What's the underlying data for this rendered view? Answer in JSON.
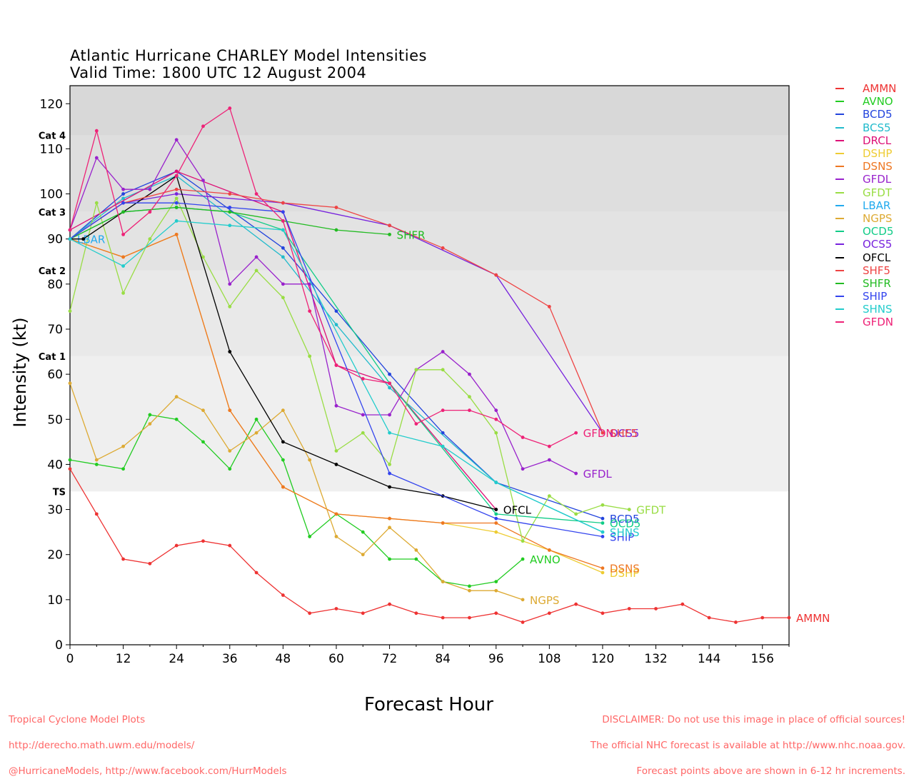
{
  "title": "Atlantic Hurricane CHARLEY Model Intensities",
  "subtitle": "Valid Time: 1800 UTC 12 August 2004",
  "footer_left": [
    "Tropical Cyclone Model Plots",
    "http://derecho.math.uwm.edu/models/",
    "@HurricaneModels, http://www.facebook.com/HurrModels"
  ],
  "footer_right": [
    "DISCLAIMER: Do not use this image in place of official sources!",
    "The official NHC forecast is available at http://www.nhc.noaa.gov.",
    "Forecast points above are shown in 6-12 hr increments."
  ],
  "chart_data": {
    "type": "line",
    "xlabel": "Forecast Hour",
    "ylabel": "Intensity (kt)",
    "xlim": [
      0,
      162
    ],
    "ylim": [
      0,
      124
    ],
    "xticks": [
      0,
      12,
      24,
      36,
      48,
      60,
      72,
      84,
      96,
      108,
      120,
      132,
      144,
      156
    ],
    "yticks": [
      0,
      10,
      20,
      30,
      40,
      50,
      60,
      70,
      80,
      90,
      100,
      110,
      120
    ],
    "grid": false,
    "legend_position": "right",
    "category_bands": [
      {
        "label": "TS",
        "from": 34,
        "to": 64,
        "color": "#efefef"
      },
      {
        "label": "Cat 1",
        "from": 64,
        "to": 83,
        "color": "#e9e9e9"
      },
      {
        "label": "Cat 2",
        "from": 83,
        "to": 96,
        "color": "#e3e3e3"
      },
      {
        "label": "Cat 3",
        "from": 96,
        "to": 113,
        "color": "#dedede"
      },
      {
        "label": "Cat 4",
        "from": 113,
        "to": 124,
        "color": "#d8d8d8"
      }
    ],
    "series": [
      {
        "name": "AMMN",
        "color": "#ee3333",
        "label": "AMMN",
        "points": [
          [
            0,
            39
          ],
          [
            6,
            29
          ],
          [
            12,
            19
          ],
          [
            18,
            18
          ],
          [
            24,
            22
          ],
          [
            30,
            23
          ],
          [
            36,
            22
          ],
          [
            42,
            16
          ],
          [
            48,
            11
          ],
          [
            54,
            7
          ],
          [
            60,
            8
          ],
          [
            66,
            7
          ],
          [
            72,
            9
          ],
          [
            78,
            7
          ],
          [
            84,
            6
          ],
          [
            90,
            6
          ],
          [
            96,
            7
          ],
          [
            102,
            5
          ],
          [
            108,
            7
          ],
          [
            114,
            9
          ],
          [
            120,
            7
          ],
          [
            126,
            8
          ],
          [
            132,
            8
          ],
          [
            138,
            9
          ],
          [
            144,
            6
          ],
          [
            150,
            5
          ],
          [
            156,
            6
          ],
          [
            162,
            6
          ]
        ]
      },
      {
        "name": "AVNO",
        "color": "#22cc22",
        "label": "AVNO",
        "points": [
          [
            0,
            41
          ],
          [
            6,
            40
          ],
          [
            12,
            39
          ],
          [
            18,
            51
          ],
          [
            24,
            50
          ],
          [
            30,
            45
          ],
          [
            36,
            39
          ],
          [
            42,
            50
          ],
          [
            48,
            41
          ],
          [
            54,
            24
          ],
          [
            60,
            29
          ],
          [
            66,
            25
          ],
          [
            72,
            19
          ],
          [
            78,
            19
          ],
          [
            84,
            14
          ],
          [
            90,
            13
          ],
          [
            96,
            14
          ],
          [
            102,
            19
          ]
        ]
      },
      {
        "name": "BCD5",
        "color": "#2244dd",
        "label": "BCD5",
        "points": [
          [
            0,
            90
          ],
          [
            12,
            100
          ],
          [
            24,
            105
          ],
          [
            48,
            88
          ],
          [
            60,
            74
          ],
          [
            72,
            60
          ],
          [
            84,
            47
          ],
          [
            96,
            36
          ],
          [
            120,
            28
          ]
        ]
      },
      {
        "name": "BCS5",
        "color": "#22bbcc",
        "label": "",
        "points": [
          [
            0,
            90
          ],
          [
            12,
            99
          ],
          [
            24,
            104
          ],
          [
            48,
            86
          ],
          [
            60,
            71
          ],
          [
            72,
            57
          ],
          [
            96,
            36
          ],
          [
            120,
            25
          ]
        ]
      },
      {
        "name": "DRCL",
        "color": "#dd1177",
        "label": "",
        "points": [
          [
            0,
            92
          ],
          [
            24,
            105
          ],
          [
            48,
            96
          ],
          [
            60,
            62
          ],
          [
            72,
            58
          ],
          [
            96,
            30
          ]
        ]
      },
      {
        "name": "DSHP",
        "color": "#eecc33",
        "label": "DSHP",
        "points": [
          [
            0,
            90
          ],
          [
            12,
            86
          ],
          [
            24,
            91
          ],
          [
            36,
            52
          ],
          [
            48,
            35
          ],
          [
            60,
            29
          ],
          [
            72,
            28
          ],
          [
            84,
            27
          ],
          [
            96,
            25
          ],
          [
            108,
            21
          ],
          [
            120,
            16
          ]
        ]
      },
      {
        "name": "DSNS",
        "color": "#ee7722",
        "label": "DSNS",
        "points": [
          [
            0,
            90
          ],
          [
            12,
            86
          ],
          [
            24,
            91
          ],
          [
            36,
            52
          ],
          [
            48,
            35
          ],
          [
            60,
            29
          ],
          [
            72,
            28
          ],
          [
            84,
            27
          ],
          [
            96,
            27
          ],
          [
            108,
            21
          ],
          [
            120,
            17
          ]
        ]
      },
      {
        "name": "GFDL",
        "color": "#9922cc",
        "label": "GFDL",
        "points": [
          [
            0,
            92
          ],
          [
            6,
            108
          ],
          [
            12,
            101
          ],
          [
            18,
            101
          ],
          [
            24,
            112
          ],
          [
            30,
            103
          ],
          [
            36,
            80
          ],
          [
            42,
            86
          ],
          [
            48,
            80
          ],
          [
            54,
            80
          ],
          [
            60,
            53
          ],
          [
            66,
            51
          ],
          [
            72,
            51
          ],
          [
            78,
            61
          ],
          [
            84,
            65
          ],
          [
            90,
            60
          ],
          [
            96,
            52
          ],
          [
            102,
            39
          ],
          [
            108,
            41
          ],
          [
            114,
            38
          ]
        ]
      },
      {
        "name": "GFDT",
        "color": "#99dd44",
        "label": "GFDT",
        "points": [
          [
            0,
            74
          ],
          [
            6,
            98
          ],
          [
            12,
            78
          ],
          [
            18,
            90
          ],
          [
            24,
            99
          ],
          [
            30,
            86
          ],
          [
            36,
            75
          ],
          [
            42,
            83
          ],
          [
            48,
            77
          ],
          [
            54,
            64
          ],
          [
            60,
            43
          ],
          [
            66,
            47
          ],
          [
            72,
            40
          ],
          [
            78,
            61
          ],
          [
            84,
            61
          ],
          [
            90,
            55
          ],
          [
            96,
            47
          ],
          [
            102,
            23
          ],
          [
            108,
            33
          ],
          [
            114,
            29
          ],
          [
            120,
            31
          ],
          [
            126,
            30
          ]
        ]
      },
      {
        "name": "LBAR",
        "color": "#22aaee",
        "label": "LBAR",
        "points": [
          [
            0,
            90
          ]
        ]
      },
      {
        "name": "NGPS",
        "color": "#ddaa33",
        "label": "NGPS",
        "points": [
          [
            0,
            58
          ],
          [
            6,
            41
          ],
          [
            12,
            44
          ],
          [
            18,
            49
          ],
          [
            24,
            55
          ],
          [
            30,
            52
          ],
          [
            36,
            43
          ],
          [
            42,
            47
          ],
          [
            48,
            52
          ],
          [
            54,
            41
          ],
          [
            60,
            24
          ],
          [
            66,
            20
          ],
          [
            72,
            26
          ],
          [
            78,
            21
          ],
          [
            84,
            14
          ],
          [
            90,
            12
          ],
          [
            96,
            12
          ],
          [
            102,
            10
          ]
        ]
      },
      {
        "name": "OCD5",
        "color": "#11cc88",
        "label": "OCD5",
        "points": [
          [
            0,
            90
          ],
          [
            12,
            96
          ],
          [
            24,
            97
          ],
          [
            36,
            96
          ],
          [
            48,
            92
          ],
          [
            72,
            58
          ],
          [
            96,
            29
          ],
          [
            120,
            27
          ]
        ]
      },
      {
        "name": "OCS5",
        "color": "#7722dd",
        "label": "OCS5",
        "points": [
          [
            0,
            90
          ],
          [
            12,
            98
          ],
          [
            24,
            100
          ],
          [
            48,
            98
          ],
          [
            72,
            93
          ],
          [
            96,
            82
          ],
          [
            120,
            47
          ]
        ]
      },
      {
        "name": "OFCL",
        "color": "#000000",
        "label": "OFCL",
        "points": [
          [
            0,
            90
          ],
          [
            3,
            90
          ],
          [
            24,
            104
          ],
          [
            36,
            65
          ],
          [
            48,
            45
          ],
          [
            60,
            40
          ],
          [
            72,
            35
          ],
          [
            84,
            33
          ],
          [
            96,
            30
          ]
        ]
      },
      {
        "name": "SHF5",
        "color": "#ee4444",
        "label": "SHF5",
        "points": [
          [
            0,
            90
          ],
          [
            12,
            98
          ],
          [
            24,
            101
          ],
          [
            36,
            100
          ],
          [
            48,
            98
          ],
          [
            60,
            97
          ],
          [
            72,
            93
          ],
          [
            84,
            88
          ],
          [
            96,
            82
          ],
          [
            108,
            75
          ],
          [
            120,
            47
          ]
        ]
      },
      {
        "name": "SHFR",
        "color": "#22bb22",
        "label": "SHFR",
        "points": [
          [
            0,
            90
          ],
          [
            12,
            96
          ],
          [
            24,
            97
          ],
          [
            36,
            96
          ],
          [
            48,
            94
          ],
          [
            60,
            92
          ],
          [
            72,
            91
          ]
        ]
      },
      {
        "name": "SHIP",
        "color": "#3344ee",
        "label": "SHIP",
        "points": [
          [
            0,
            90
          ],
          [
            12,
            98
          ],
          [
            24,
            98
          ],
          [
            36,
            97
          ],
          [
            48,
            96
          ],
          [
            72,
            38
          ],
          [
            96,
            28
          ],
          [
            120,
            24
          ]
        ]
      },
      {
        "name": "SHNS",
        "color": "#22cccc",
        "label": "SHNS",
        "points": [
          [
            0,
            90
          ],
          [
            12,
            84
          ],
          [
            24,
            94
          ],
          [
            36,
            93
          ],
          [
            48,
            92
          ],
          [
            72,
            47
          ],
          [
            84,
            44
          ],
          [
            96,
            36
          ],
          [
            120,
            25
          ]
        ]
      },
      {
        "name": "GFDN",
        "color": "#ee2277",
        "label": "GFDN",
        "points": [
          [
            0,
            92
          ],
          [
            6,
            114
          ],
          [
            12,
            91
          ],
          [
            18,
            96
          ],
          [
            24,
            104
          ],
          [
            30,
            115
          ],
          [
            36,
            119
          ],
          [
            42,
            100
          ],
          [
            48,
            94
          ],
          [
            54,
            74
          ],
          [
            60,
            62
          ],
          [
            66,
            59
          ],
          [
            72,
            58
          ],
          [
            78,
            49
          ],
          [
            84,
            52
          ],
          [
            90,
            52
          ],
          [
            96,
            50
          ],
          [
            102,
            46
          ],
          [
            108,
            44
          ],
          [
            114,
            47
          ]
        ]
      }
    ]
  }
}
